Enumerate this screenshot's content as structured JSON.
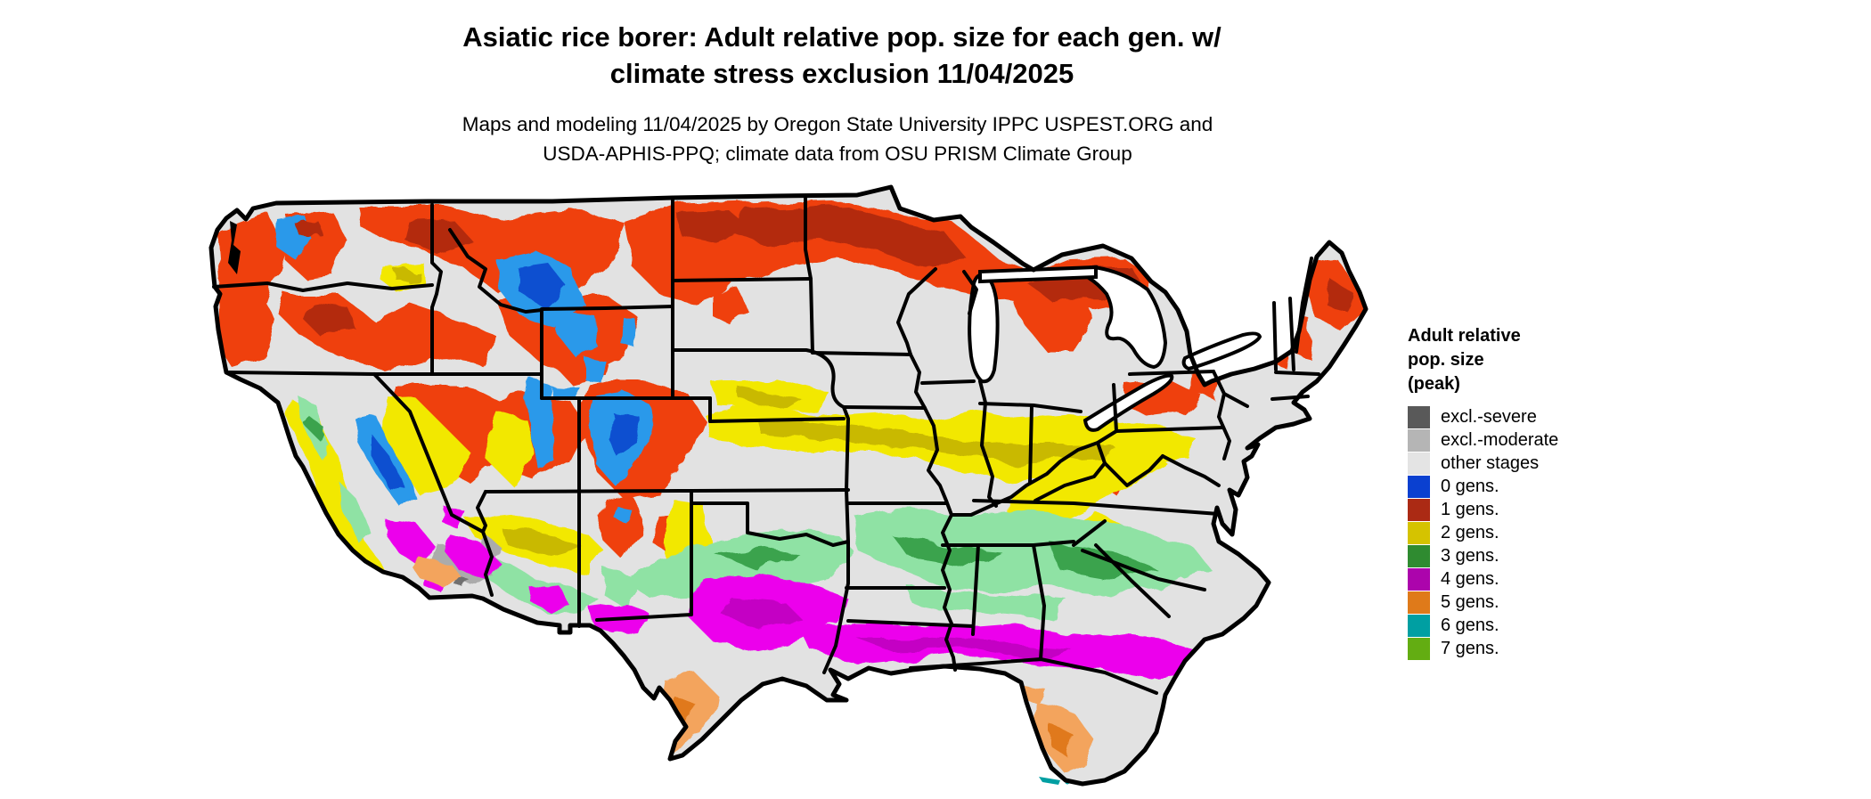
{
  "header": {
    "title_line1": "Asiatic rice borer: Adult relative pop. size for each gen. w/",
    "title_line2": "climate stress exclusion 11/04/2025",
    "subtitle_line1": "Maps and modeling 11/04/2025 by Oregon State University IPPC USPEST.ORG and",
    "subtitle_line2": "USDA-APHIS-PPQ; climate data from OSU PRISM Climate Group"
  },
  "legend": {
    "title_lines": [
      "Adult relative",
      "pop. size",
      "(peak)"
    ],
    "items": [
      {
        "label": "excl.-severe",
        "color": "#595959"
      },
      {
        "label": "excl.-moderate",
        "color": "#b5b5b5"
      },
      {
        "label": "other stages",
        "color": "#e4e4e4"
      },
      {
        "label": "0 gens.",
        "color": "#0a40d0"
      },
      {
        "label": "1 gens.",
        "color": "#ab2a14"
      },
      {
        "label": "2 gens.",
        "color": "#d5c300"
      },
      {
        "label": "3 gens.",
        "color": "#2f8b30"
      },
      {
        "label": "4 gens.",
        "color": "#ac04ac"
      },
      {
        "label": "5 gens.",
        "color": "#df7a1a"
      },
      {
        "label": "6 gens.",
        "color": "#009fa2"
      },
      {
        "label": "7 gens.",
        "color": "#63ad12"
      }
    ]
  },
  "map": {
    "region": "Continental United States",
    "palette": {
      "bg": "#e2e2e2",
      "red": "#ef4110",
      "red_dark": "#b32c10",
      "yellow": "#f2e800",
      "yellow_dark": "#c9b900",
      "green": "#8fe2a4",
      "green_dark": "#3aa34e",
      "magenta": "#ec00ec",
      "magenta_dark": "#c400c4",
      "orange": "#f3a45d",
      "orange_dark": "#e0791c",
      "blue": "#2b99ea",
      "blue_dark": "#0a50d0",
      "gray_moderate": "#ababab",
      "gray_severe": "#707070",
      "teal": "#009fa2",
      "border": "#000000",
      "ocean": "#ffffff"
    }
  }
}
